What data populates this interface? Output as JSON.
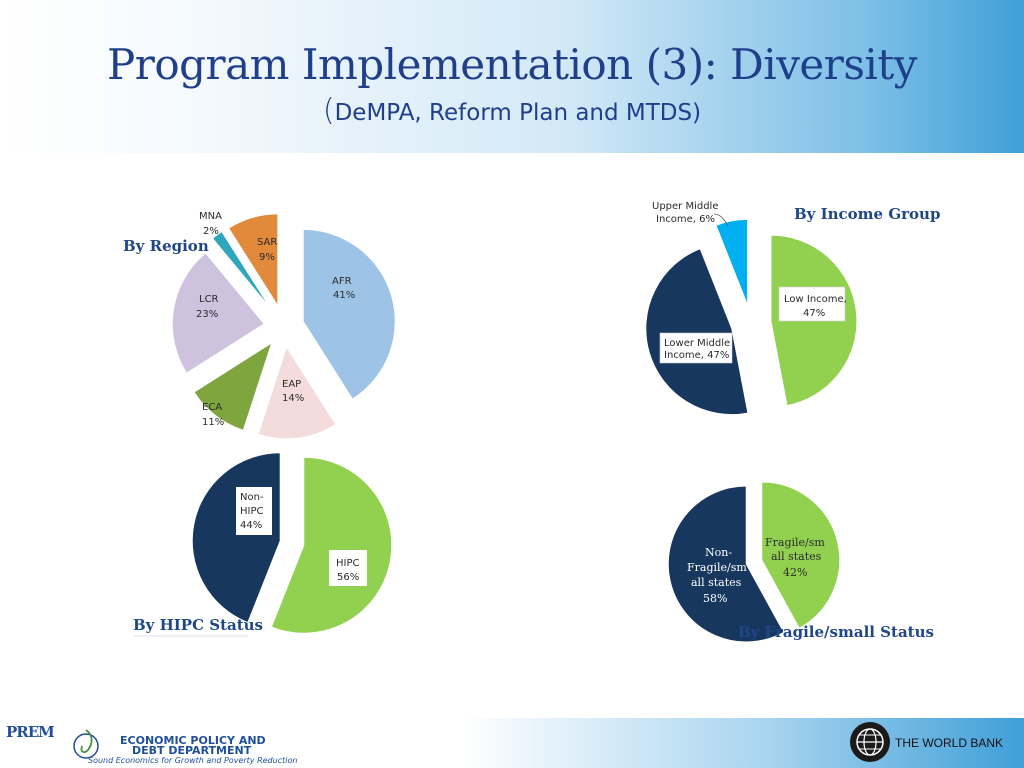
{
  "header": {
    "title": "Program Implementation (3): Diversity",
    "subtitle_open": "(",
    "subtitle": "DeMPA, Reform Plan and MTDS",
    "subtitle_close": ")"
  },
  "colors": {
    "afr": "#9dc3e6",
    "eap": "#f4dcdc",
    "eca": "#7fa53f",
    "lcr": "#cfc2de",
    "mna": "#2fa6b9",
    "sar": "#e28a3c",
    "low_income": "#92d050",
    "lower_middle": "#17375e",
    "upper_middle": "#00b0f0",
    "hipc": "#92d050",
    "non_hipc": "#17375e",
    "fragile": "#92d050",
    "non_fragile": "#17375e"
  },
  "chart_data": [
    {
      "type": "pie",
      "title": "By Region",
      "categories": [
        "AFR",
        "EAP",
        "ECA",
        "LCR",
        "MNA",
        "SAR"
      ],
      "values": [
        41,
        14,
        11,
        23,
        2,
        9
      ],
      "labels": [
        "41%",
        "14%",
        "11%",
        "23%",
        "2%",
        "9%"
      ],
      "exploded": true
    },
    {
      "type": "pie",
      "title": "By Income Group",
      "categories": [
        "Low Income,",
        "Lower Middle Income,",
        "Upper Middle Income,"
      ],
      "values": [
        47,
        47,
        6
      ],
      "labels": [
        "47%",
        "47%",
        "6%"
      ],
      "exploded": true
    },
    {
      "type": "pie",
      "title": "By HIPC Status",
      "categories": [
        "HIPC",
        "Non-HIPC"
      ],
      "values": [
        56,
        44
      ],
      "labels": [
        "56%",
        "44%"
      ],
      "exploded": true
    },
    {
      "type": "pie",
      "title": "By Fragile/small Status",
      "categories": [
        "Fragile/small states",
        "Non-Fragile/small states"
      ],
      "values": [
        42,
        58
      ],
      "labels": [
        "42%",
        "58%"
      ],
      "exploded": true
    }
  ],
  "footer": {
    "prem_logo": "PREM",
    "dept_line1": "ECONOMIC POLICY AND",
    "dept_line2": "DEBT DEPARTMENT",
    "dept_tagline": "Sound Economics for Growth and Poverty Reduction",
    "wb_label": "THE WORLD BANK"
  }
}
